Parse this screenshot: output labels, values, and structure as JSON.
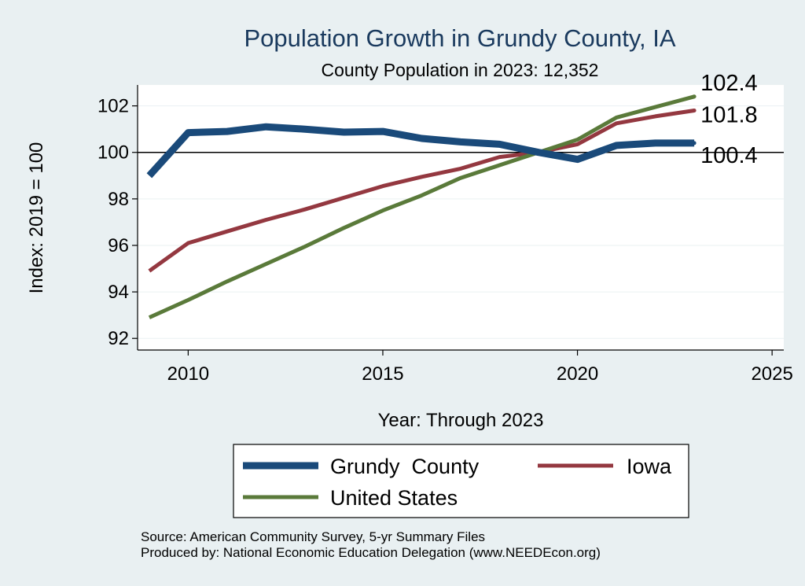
{
  "chart_data": {
    "type": "line",
    "title": "Population Growth in Grundy County, IA",
    "subtitle": "County Population in 2023: 12,352",
    "xlabel": "Year: Through 2023",
    "ylabel": "Index: 2019 = 100",
    "xlim": [
      2008.7,
      2025.3
    ],
    "ylim": [
      91.5,
      102.9
    ],
    "xticks": [
      2010,
      2015,
      2020,
      2025
    ],
    "yticks": [
      92,
      94,
      96,
      98,
      100,
      102
    ],
    "reference_line": 100,
    "x": [
      2009,
      2010,
      2011,
      2012,
      2013,
      2014,
      2015,
      2016,
      2017,
      2018,
      2019,
      2020,
      2021,
      2022,
      2023
    ],
    "series": [
      {
        "name": "Grundy  County",
        "color": "#1a4a7a",
        "values": [
          99.0,
          100.85,
          100.9,
          101.1,
          101.0,
          100.87,
          100.9,
          100.6,
          100.45,
          100.35,
          100.0,
          99.7,
          100.3,
          100.4,
          100.4
        ],
        "end_label": "100.4"
      },
      {
        "name": "Iowa",
        "color": "#943840",
        "values": [
          94.9,
          96.1,
          96.6,
          97.1,
          97.55,
          98.05,
          98.55,
          98.95,
          99.3,
          99.8,
          100.0,
          100.35,
          101.25,
          101.55,
          101.8
        ],
        "end_label": "101.8"
      },
      {
        "name": "United States",
        "color": "#5a7a3a",
        "values": [
          92.9,
          93.65,
          94.45,
          95.2,
          95.95,
          96.75,
          97.5,
          98.15,
          98.9,
          99.45,
          100.0,
          100.55,
          101.5,
          101.95,
          102.4
        ],
        "end_label": "102.4"
      }
    ],
    "source_line1": "Source: American Community Survey, 5-yr Summary Files",
    "source_line2": "Produced by: National Economic Education Delegation (www.NEEDEcon.org)"
  }
}
